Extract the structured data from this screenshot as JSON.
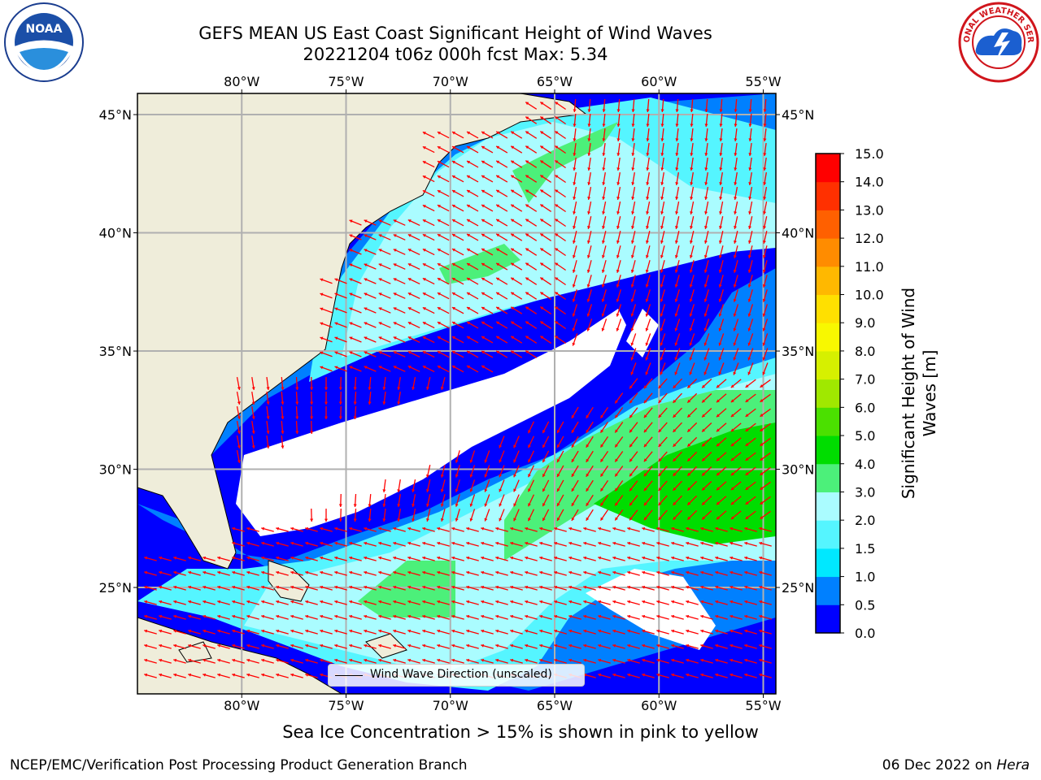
{
  "header": {
    "title_line1": "GEFS MEAN US East Coast Significant Height of Wind Waves",
    "title_line2": "20221204 t06z 000h fcst   Max: 5.34"
  },
  "logos": {
    "left": "noaa-logo",
    "right": "nws-logo",
    "left_text": "NOAA",
    "right_text": "NATIONAL WEATHER SERVICE"
  },
  "map": {
    "lon_labels": [
      "80°W",
      "75°W",
      "70°W",
      "65°W",
      "60°W",
      "55°W"
    ],
    "lat_labels": [
      "45°N",
      "40°N",
      "35°N",
      "30°N",
      "25°N"
    ],
    "legend_text": "Wind Wave Direction (unscaled)",
    "max_value": 5.34
  },
  "colorbar": {
    "label": "Significant Height of Wind Waves [m]",
    "ticks": [
      "0.0",
      "0.5",
      "1.0",
      "1.5",
      "2.0",
      "3.0",
      "4.0",
      "5.0",
      "6.0",
      "7.0",
      "8.0",
      "9.0",
      "10.0",
      "11.0",
      "12.0",
      "13.0",
      "14.0",
      "15.0"
    ],
    "colors": [
      "#0000ff",
      "#0080ff",
      "#00e8ff",
      "#55f5ff",
      "#aafcff",
      "#4cf07a",
      "#00dd00",
      "#4be000",
      "#a0e800",
      "#d6f000",
      "#f8f800",
      "#ffe000",
      "#ffb800",
      "#ff8c00",
      "#ff6000",
      "#ff3000",
      "#ff0000"
    ]
  },
  "colors": {
    "land": "#efedda",
    "arrow": "#ff0000",
    "grid": "#b0b0b0"
  },
  "notes": {
    "ice": "Sea Ice Concentration > 15% is shown in pink to yellow"
  },
  "footer": {
    "left": "NCEP/EMC/Verification Post Processing Product Generation Branch",
    "date": "06 Dec 2022 on",
    "machine": "Hera"
  }
}
